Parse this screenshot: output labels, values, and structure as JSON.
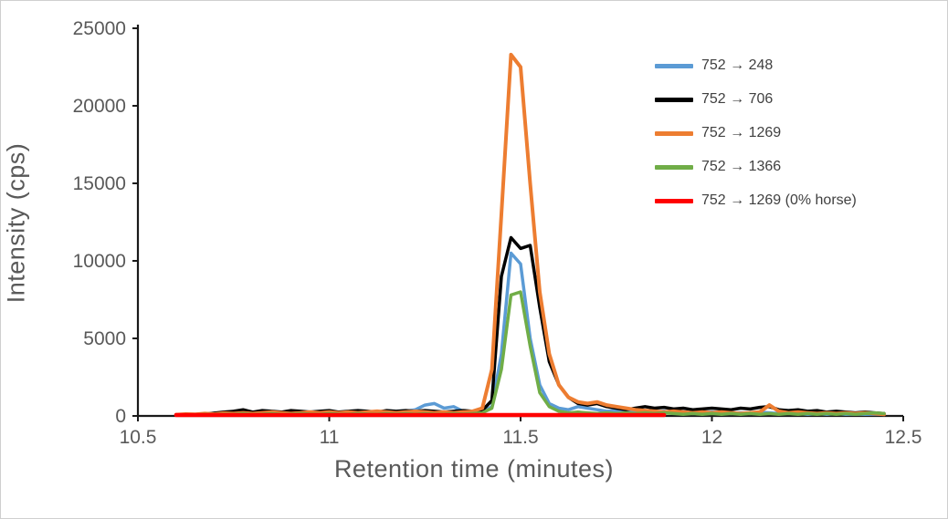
{
  "chart_data": {
    "type": "line",
    "title": "",
    "xlabel": "Retention time (minutes)",
    "ylabel": "Intensity (cps)",
    "xlim": [
      10.5,
      12.5
    ],
    "ylim": [
      0,
      25000
    ],
    "grid": false,
    "legend_position": "inside-top-right",
    "x_tick_values": [
      10.5,
      11,
      11.5,
      12,
      12.5
    ],
    "x_tick_labels": [
      "10.5",
      "11",
      "11.5",
      "12",
      "12.5"
    ],
    "y_tick_values": [
      0,
      5000,
      10000,
      15000,
      20000,
      25000
    ],
    "y_tick_labels": [
      "0",
      "5000",
      "10000",
      "15000",
      "20000",
      "25000"
    ],
    "axis_color": "#1a1a1a",
    "tick_label_color": "#595959",
    "x": [
      10.6,
      10.625,
      10.65,
      10.675,
      10.7,
      10.725,
      10.75,
      10.775,
      10.8,
      10.825,
      10.85,
      10.875,
      10.9,
      10.925,
      10.95,
      10.975,
      11.0,
      11.025,
      11.05,
      11.075,
      11.1,
      11.125,
      11.15,
      11.175,
      11.2,
      11.225,
      11.25,
      11.275,
      11.3,
      11.325,
      11.35,
      11.375,
      11.4,
      11.425,
      11.45,
      11.475,
      11.5,
      11.525,
      11.55,
      11.575,
      11.6,
      11.625,
      11.65,
      11.675,
      11.7,
      11.725,
      11.75,
      11.775,
      11.8,
      11.825,
      11.85,
      11.875,
      11.9,
      11.925,
      11.95,
      11.975,
      12.0,
      12.025,
      12.05,
      12.075,
      12.1,
      12.125,
      12.15,
      12.175,
      12.2,
      12.225,
      12.25,
      12.275,
      12.3,
      12.325,
      12.35,
      12.375,
      12.4,
      12.425,
      12.45
    ],
    "series": [
      {
        "name": "752 → 248",
        "color": "#5B9BD5",
        "line_width": 3.5,
        "values": [
          50,
          80,
          60,
          100,
          150,
          120,
          200,
          150,
          250,
          180,
          120,
          200,
          160,
          220,
          180,
          250,
          300,
          200,
          150,
          250,
          200,
          150,
          250,
          200,
          300,
          400,
          700,
          800,
          500,
          600,
          300,
          200,
          250,
          600,
          4000,
          10500,
          9800,
          5000,
          2000,
          800,
          500,
          400,
          600,
          500,
          400,
          300,
          350,
          250,
          300,
          200,
          250,
          300,
          200,
          250,
          150,
          200,
          250,
          200,
          150,
          200,
          150,
          250,
          200,
          150,
          200,
          150,
          100,
          150,
          100,
          150,
          100,
          120,
          100,
          120,
          100
        ]
      },
      {
        "name": "752 → 706",
        "color": "#000000",
        "line_width": 3.5,
        "values": [
          60,
          100,
          80,
          120,
          180,
          250,
          300,
          400,
          250,
          350,
          300,
          250,
          350,
          300,
          250,
          300,
          350,
          250,
          300,
          350,
          300,
          250,
          350,
          300,
          350,
          300,
          350,
          300,
          250,
          300,
          350,
          300,
          350,
          1000,
          9000,
          11500,
          10800,
          11000,
          7000,
          3500,
          2000,
          1200,
          800,
          700,
          800,
          600,
          500,
          400,
          500,
          600,
          500,
          550,
          450,
          500,
          400,
          450,
          500,
          450,
          400,
          500,
          450,
          550,
          600,
          400,
          350,
          400,
          300,
          350,
          250,
          300,
          250,
          200,
          250,
          200,
          150
        ]
      },
      {
        "name": "752 → 1269",
        "color": "#ED7D31",
        "line_width": 4,
        "values": [
          80,
          120,
          100,
          150,
          120,
          180,
          150,
          200,
          150,
          200,
          250,
          200,
          150,
          200,
          250,
          200,
          250,
          200,
          250,
          200,
          250,
          300,
          250,
          200,
          250,
          300,
          250,
          200,
          250,
          200,
          250,
          300,
          500,
          3000,
          13000,
          23300,
          22500,
          15000,
          8000,
          4000,
          2000,
          1200,
          900,
          800,
          900,
          700,
          600,
          500,
          400,
          350,
          300,
          250,
          300,
          250,
          200,
          250,
          200,
          250,
          200,
          150,
          200,
          250,
          700,
          300,
          200,
          250,
          200,
          150,
          200,
          150,
          200,
          150,
          200,
          150,
          100
        ]
      },
      {
        "name": "752 → 1366",
        "color": "#70AD47",
        "line_width": 3.5,
        "values": [
          50,
          80,
          60,
          100,
          80,
          120,
          100,
          150,
          100,
          120,
          150,
          100,
          120,
          150,
          120,
          100,
          150,
          120,
          100,
          150,
          120,
          100,
          150,
          120,
          150,
          100,
          150,
          120,
          100,
          150,
          120,
          150,
          200,
          500,
          3000,
          7800,
          8000,
          4500,
          1500,
          600,
          300,
          200,
          250,
          200,
          150,
          200,
          150,
          200,
          150,
          200,
          150,
          200,
          150,
          100,
          150,
          100,
          150,
          100,
          150,
          100,
          150,
          100,
          150,
          100,
          150,
          100,
          150,
          100,
          150,
          100,
          150,
          100,
          150,
          200,
          150
        ]
      },
      {
        "name": "752 → 1269 (0% horse)",
        "color": "#FF0000",
        "line_width": 4.5,
        "values": [
          60,
          60,
          60,
          60,
          60,
          60,
          60,
          60,
          60,
          60,
          60,
          60,
          60,
          60,
          60,
          60,
          60,
          60,
          60,
          60,
          60,
          60,
          60,
          60,
          60,
          60,
          60,
          60,
          60,
          60,
          60,
          60,
          60,
          60,
          60,
          60,
          60,
          60,
          60,
          60,
          60,
          60,
          60,
          60,
          60,
          60,
          60,
          60,
          60,
          60,
          60,
          60,
          null,
          null,
          null,
          null,
          null,
          null,
          null,
          null,
          null,
          null,
          null,
          null,
          null,
          null,
          null,
          null,
          null,
          null,
          null,
          null,
          null,
          null,
          null
        ]
      }
    ]
  }
}
